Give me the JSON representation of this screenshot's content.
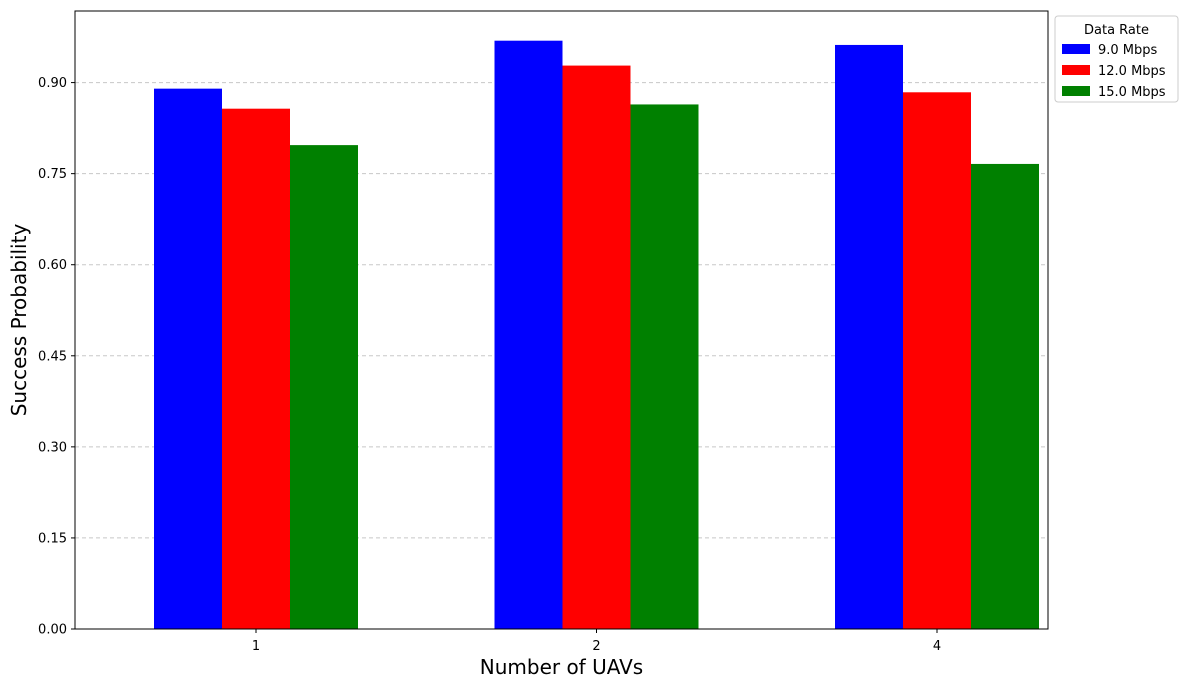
{
  "chart_data": {
    "type": "bar",
    "categories": [
      "1",
      "2",
      "4"
    ],
    "series": [
      {
        "name": "9.0 Mbps",
        "color": "#0000ff",
        "values": [
          0.89,
          0.969,
          0.962
        ]
      },
      {
        "name": "12.0 Mbps",
        "color": "#ff0000",
        "values": [
          0.857,
          0.928,
          0.884
        ]
      },
      {
        "name": "15.0 Mbps",
        "color": "#008000",
        "values": [
          0.797,
          0.864,
          0.766
        ]
      }
    ],
    "xlabel": "Number of UAVs",
    "ylabel": "Success Probability",
    "ylim": [
      0,
      1.0179
    ],
    "yticks": [
      "0.00",
      "0.15",
      "0.30",
      "0.45",
      "0.60",
      "0.75",
      "0.90"
    ],
    "ytick_values": [
      0,
      0.15,
      0.3,
      0.45,
      0.6,
      0.75,
      0.9
    ],
    "grid": "y-dashed",
    "legend": {
      "title": "Data Rate",
      "placement": "outside-top-right"
    }
  }
}
